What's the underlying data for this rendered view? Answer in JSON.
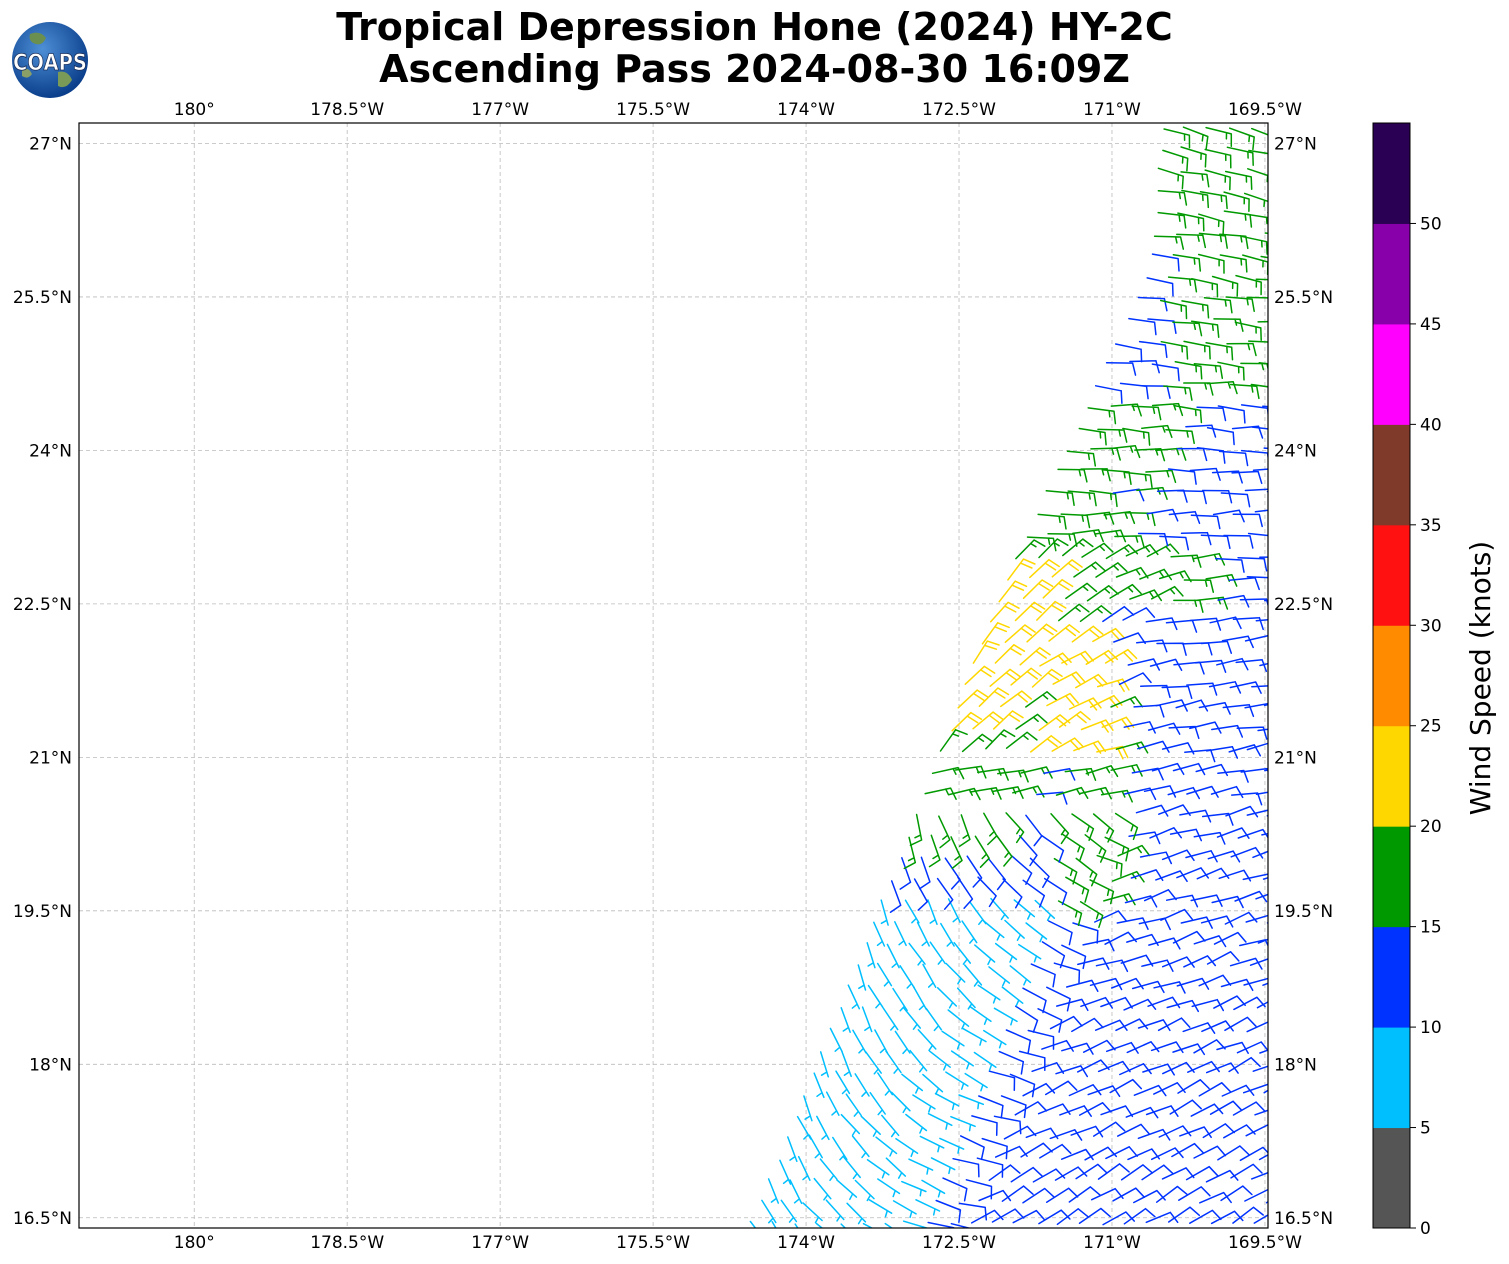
{
  "figure": {
    "title_line1": "Tropical Depression Hone (2024) HY-2C",
    "title_line2": "Ascending Pass 2024-08-30 16:09Z",
    "logo_text": "COAPS"
  },
  "map": {
    "lon_ticks": [
      "180°",
      "178.5°W",
      "177°W",
      "175.5°W",
      "174°W",
      "172.5°W",
      "171°W",
      "169.5°W"
    ],
    "lat_ticks": [
      "27°N",
      "25.5°N",
      "24°N",
      "22.5°N",
      "21°N",
      "19.5°N",
      "18°N",
      "16.5°N"
    ],
    "lon_values": [
      180,
      178.5,
      177,
      175.5,
      174,
      172.5,
      171,
      169.5
    ],
    "lat_values": [
      27,
      25.5,
      24,
      22.5,
      21,
      19.5,
      18,
      16.5
    ],
    "extent": {
      "lon_west": 181.13,
      "lon_east": 169.47,
      "lat_south": 16.4,
      "lat_north": 27.2
    },
    "gridlines": true,
    "swath_edge": [
      [
        174.55,
        16.4
      ],
      [
        173.0,
        20.2
      ],
      [
        172.0,
        22.8
      ],
      [
        170.6,
        25.8
      ],
      [
        170.5,
        27.2
      ]
    ]
  },
  "colorbar": {
    "label": "Wind Speed (knots)",
    "ticks": [
      "0",
      "5",
      "10",
      "15",
      "20",
      "25",
      "30",
      "35",
      "40",
      "45",
      "50"
    ],
    "bins": [
      {
        "min": 0,
        "max": 5,
        "color": "#555555"
      },
      {
        "min": 5,
        "max": 10,
        "color": "#00bfff"
      },
      {
        "min": 10,
        "max": 15,
        "color": "#0033ff"
      },
      {
        "min": 15,
        "max": 20,
        "color": "#009900"
      },
      {
        "min": 20,
        "max": 25,
        "color": "#ffd700"
      },
      {
        "min": 25,
        "max": 30,
        "color": "#ff8c00"
      },
      {
        "min": 30,
        "max": 35,
        "color": "#ff1111"
      },
      {
        "min": 35,
        "max": 40,
        "color": "#803a2a"
      },
      {
        "min": 40,
        "max": 45,
        "color": "#ff00ff"
      },
      {
        "min": 45,
        "max": 50,
        "color": "#8800aa"
      },
      {
        "min": 50,
        "max": 55,
        "color": "#2a0055"
      }
    ]
  },
  "chart_data": {
    "type": "wind-barb map",
    "wind_regions": [
      {
        "speed_range_kt": "5-10",
        "color": "#00bfff",
        "area": "south-west of swath, 16.4°N-19.7°N"
      },
      {
        "speed_range_kt": "10-15",
        "color": "#0033ff",
        "area": "most of swath"
      },
      {
        "speed_range_kt": "15-20",
        "color": "#009900",
        "area": "north-east and central band"
      },
      {
        "speed_range_kt": "20-25",
        "color": "#ffd700",
        "area": "around 21.3°N-22.7°N near 173°W and 171.5°W"
      }
    ]
  }
}
